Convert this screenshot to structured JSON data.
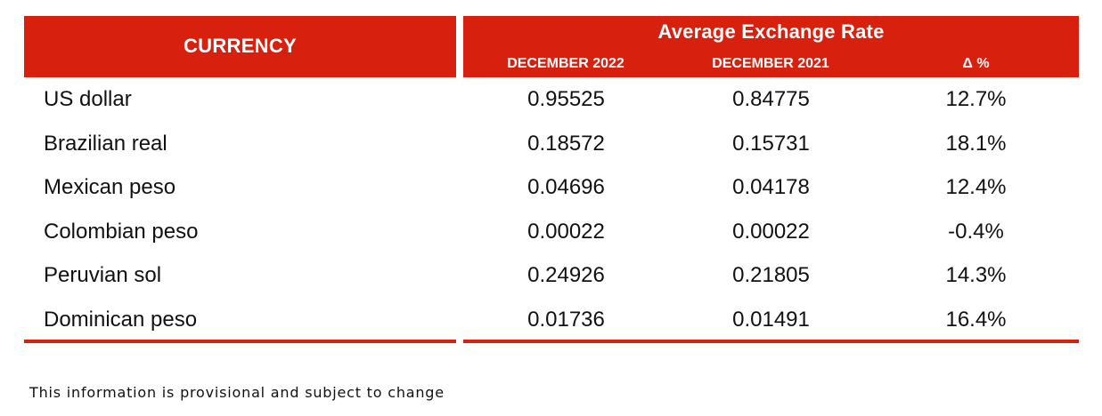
{
  "table": {
    "currency_header": "CURRENCY",
    "group_header": "Average Exchange Rate",
    "columns": [
      "DECEMBER 2022",
      "DECEMBER 2021",
      "Δ %"
    ],
    "rows": [
      {
        "currency": "US dollar",
        "dec_2022": "0.95525",
        "dec_2021": "0.84775",
        "change": "12.7%"
      },
      {
        "currency": "Brazilian real",
        "dec_2022": "0.18572",
        "dec_2021": "0.15731",
        "change": "18.1%"
      },
      {
        "currency": "Mexican peso",
        "dec_2022": "0.04696",
        "dec_2021": "0.04178",
        "change": "12.4%"
      },
      {
        "currency": "Colombian peso",
        "dec_2022": "0.00022",
        "dec_2021": "0.00022",
        "change": "-0.4%"
      },
      {
        "currency": "Peruvian sol",
        "dec_2022": "0.24926",
        "dec_2021": "0.21805",
        "change": "14.3%"
      },
      {
        "currency": "Dominican peso",
        "dec_2022": "0.01736",
        "dec_2021": "0.01491",
        "change": "16.4%"
      }
    ]
  },
  "footnote": "This information is provisional and subject to change",
  "colors": {
    "accent": "#d8200f",
    "header_text": "#ffffff",
    "body_text": "#111111"
  }
}
